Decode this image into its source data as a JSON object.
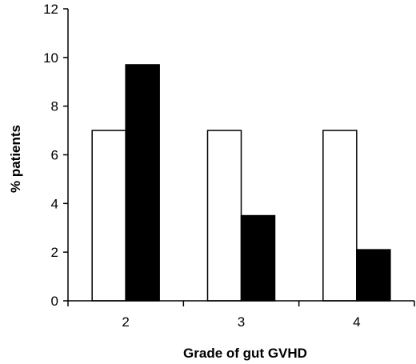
{
  "chart_data": {
    "type": "bar",
    "title": "",
    "xlabel": "Grade of gut GVHD",
    "ylabel": "% patients",
    "categories": [
      "2",
      "3",
      "4"
    ],
    "ylim": [
      0,
      12
    ],
    "yticks": [
      0,
      2,
      4,
      6,
      8,
      10,
      12
    ],
    "grid": false,
    "legend": "none",
    "series": [
      {
        "values": [
          7.0,
          7.0,
          7.0
        ],
        "color": "#ffffff"
      },
      {
        "values": [
          9.7,
          3.5,
          2.1
        ],
        "color": "#000000"
      }
    ]
  }
}
